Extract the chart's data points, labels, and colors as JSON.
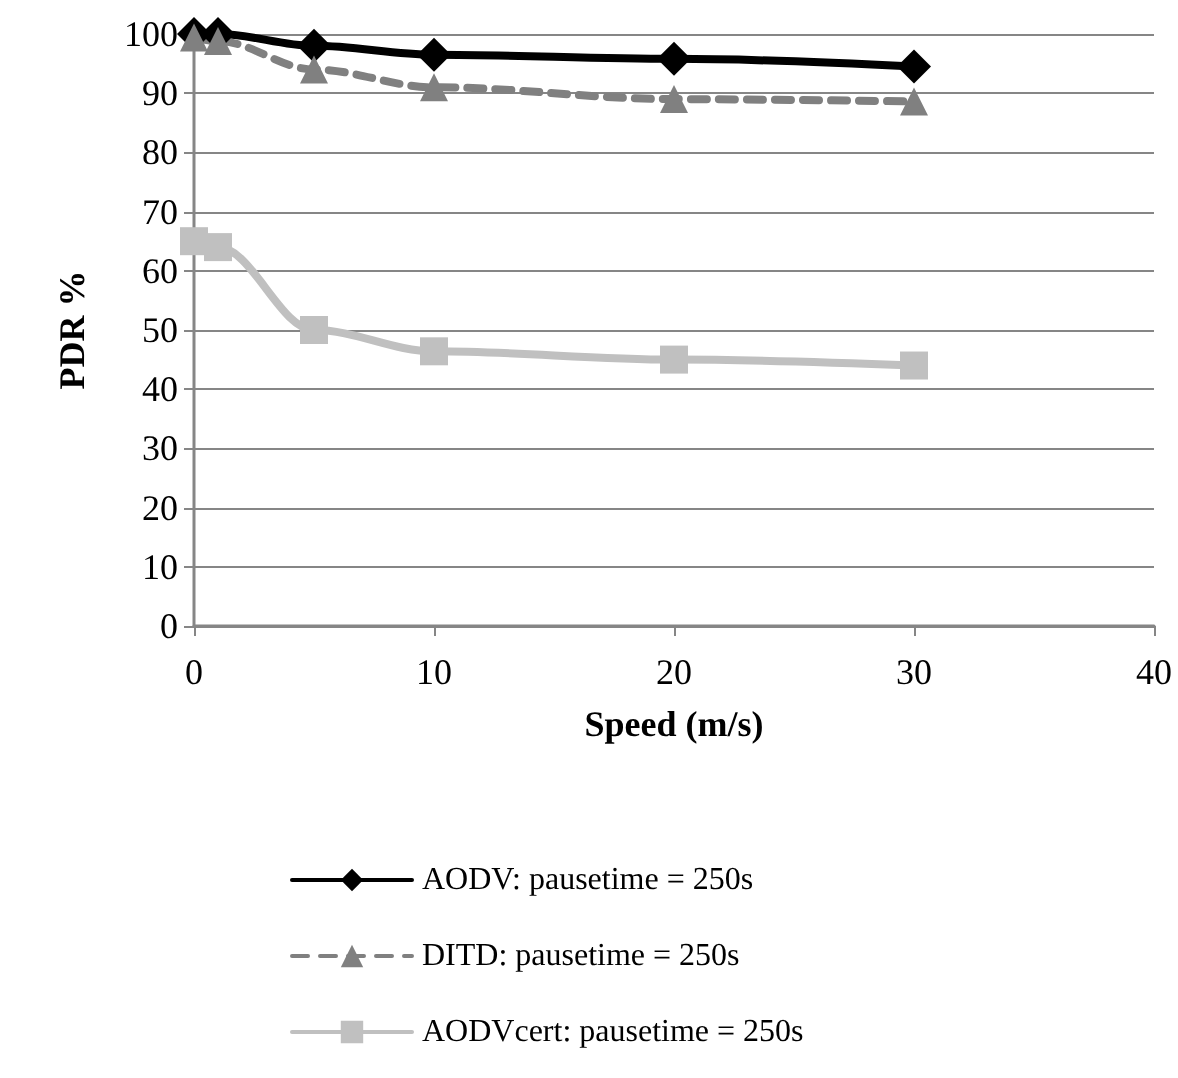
{
  "chart_data": {
    "type": "line",
    "xlabel": "Speed (m/s)",
    "ylabel": "PDR %",
    "x": [
      0,
      1,
      5,
      10,
      20,
      30
    ],
    "xlim": [
      0,
      40
    ],
    "xticks": [
      0,
      10,
      20,
      30,
      40
    ],
    "ylim": [
      0,
      100
    ],
    "yticks": [
      0,
      10,
      20,
      30,
      40,
      50,
      60,
      70,
      80,
      90,
      100
    ],
    "grid": "y",
    "legend": "bottom",
    "series": [
      {
        "name": "AODV: pausetime = 250s",
        "color": "#000000",
        "marker": "diamond",
        "line_style": "solid",
        "values": [
          100,
          100,
          98,
          96.5,
          95.8,
          94.5
        ]
      },
      {
        "name": "DITD: pausetime = 250s",
        "color": "#808080",
        "marker": "triangle",
        "line_style": "dashed",
        "values": [
          99.4,
          98.8,
          94,
          91,
          89,
          88.6
        ]
      },
      {
        "name": "AODVcert: pausetime = 250s",
        "color": "#c0c0c0",
        "marker": "square",
        "line_style": "solid",
        "values": [
          65,
          64,
          50,
          46.4,
          45,
          44
        ]
      }
    ]
  }
}
